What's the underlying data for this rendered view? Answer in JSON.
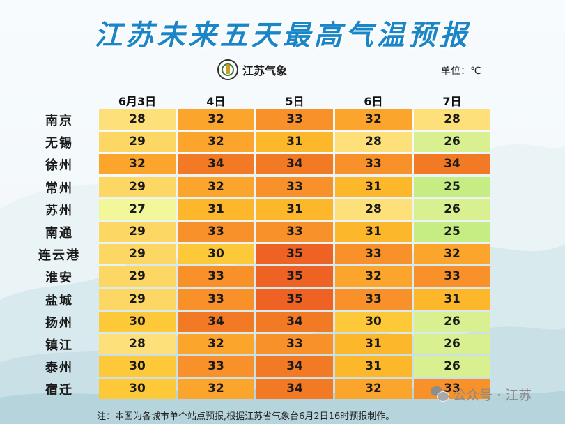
{
  "title": "江苏未来五天最高气温预报",
  "logo_text": "江苏气象",
  "unit_label": "单位：℃",
  "note": "注：本图为各城市单个站点预报,根据江苏省气象台6月2日16时预报制作。",
  "watermark": "公众号 · 江苏",
  "chart_data": {
    "type": "heatmap",
    "title": "江苏未来五天最高气温预报",
    "unit": "℃",
    "x": [
      "6月3日",
      "4日",
      "5日",
      "6日",
      "7日"
    ],
    "y": [
      "南京",
      "无锡",
      "徐州",
      "常州",
      "苏州",
      "南通",
      "连云港",
      "淮安",
      "盐城",
      "扬州",
      "镇江",
      "泰州",
      "宿迁"
    ],
    "values": [
      [
        28,
        32,
        33,
        32,
        28
      ],
      [
        29,
        32,
        31,
        28,
        26
      ],
      [
        32,
        34,
        34,
        33,
        34
      ],
      [
        29,
        32,
        33,
        31,
        25
      ],
      [
        27,
        31,
        31,
        28,
        26
      ],
      [
        29,
        33,
        33,
        31,
        25
      ],
      [
        29,
        30,
        35,
        33,
        32
      ],
      [
        29,
        33,
        35,
        32,
        33
      ],
      [
        29,
        33,
        35,
        33,
        31
      ],
      [
        30,
        34,
        34,
        30,
        26
      ],
      [
        28,
        32,
        33,
        31,
        26
      ],
      [
        30,
        33,
        34,
        31,
        26
      ],
      [
        30,
        32,
        34,
        32,
        33
      ]
    ],
    "color_scale": {
      "25": "#c6ec84",
      "26": "#d8f08f",
      "27": "#f2f79a",
      "28": "#fde07a",
      "29": "#fdd764",
      "30": "#fdc938",
      "31": "#fdb72a",
      "32": "#fca52c",
      "33": "#f8912a",
      "34": "#f27a25",
      "35": "#ee6223"
    }
  }
}
